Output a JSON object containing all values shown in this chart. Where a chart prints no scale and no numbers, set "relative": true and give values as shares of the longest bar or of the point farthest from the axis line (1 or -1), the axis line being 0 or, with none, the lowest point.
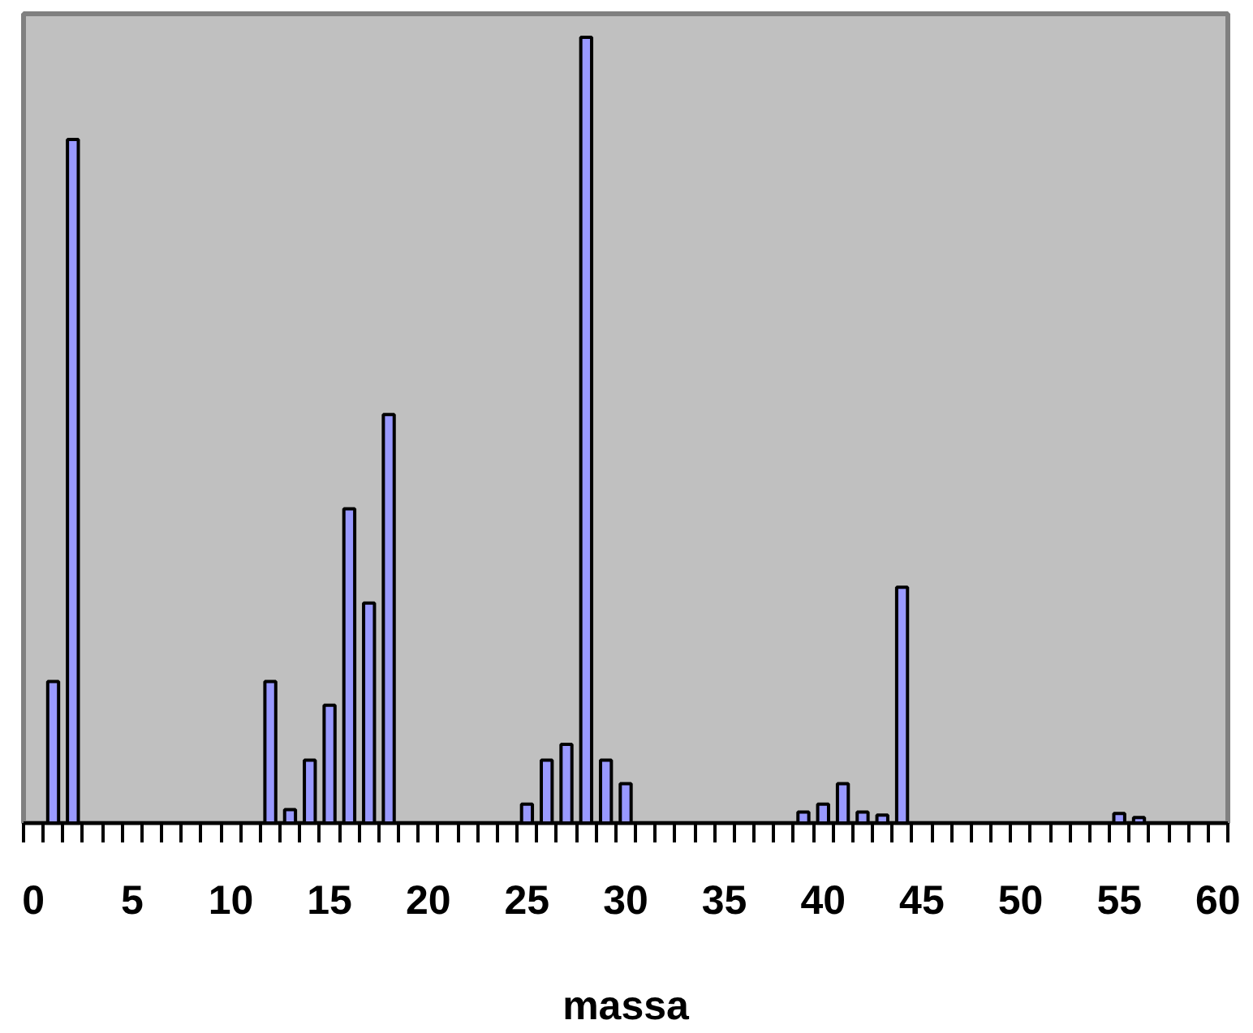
{
  "chart_data": {
    "type": "bar",
    "relative": true,
    "xlabel": "massa",
    "color": "#9999ff",
    "categories": [
      "0",
      null,
      null,
      null,
      null,
      "5",
      null,
      null,
      null,
      null,
      "10",
      null,
      null,
      null,
      null,
      "15",
      null,
      null,
      null,
      null,
      "20",
      null,
      null,
      null,
      null,
      "25",
      null,
      null,
      null,
      null,
      "30",
      null,
      null,
      null,
      null,
      "35",
      null,
      null,
      null,
      null,
      "40",
      null,
      null,
      null,
      null,
      "45",
      null,
      null,
      null,
      null,
      "50",
      null,
      null,
      null,
      null,
      "55",
      null,
      null,
      null,
      null,
      "60"
    ],
    "values": [
      0,
      0.18,
      0.87,
      0,
      0,
      0,
      0,
      0,
      0,
      0,
      0,
      0,
      0.18,
      0.017,
      0.08,
      0.15,
      0.4,
      0.28,
      0.52,
      0,
      0,
      0,
      0,
      0,
      0,
      0.024,
      0.08,
      0.1,
      1,
      0.08,
      0.05,
      0,
      0,
      0,
      0,
      0,
      0,
      0,
      0,
      0.014,
      0.024,
      0.05,
      0.014,
      0.01,
      0.3,
      0,
      0,
      0,
      0,
      0,
      0,
      0,
      0,
      0,
      0,
      0.012,
      0.007,
      0,
      0,
      0,
      0
    ],
    "grid": false
  }
}
